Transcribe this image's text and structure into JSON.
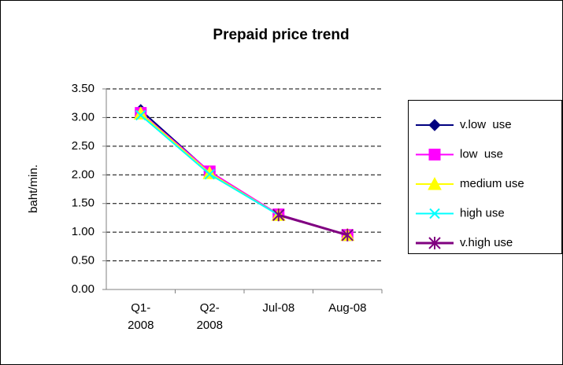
{
  "chart_data": {
    "type": "line",
    "title": "Prepaid price trend",
    "y_label": "baht/min.",
    "categories": [
      "Q1-2008",
      "Q2-2008",
      "Jul-08",
      "Aug-08"
    ],
    "series": [
      {
        "name": "v.low  use",
        "color": "#000080",
        "marker": "diamond",
        "values": [
          3.13,
          2.05,
          1.31,
          0.95
        ]
      },
      {
        "name": "low  use",
        "color": "#ff00ff",
        "marker": "square",
        "values": [
          3.08,
          2.06,
          1.31,
          0.95
        ]
      },
      {
        "name": "medium use",
        "color": "#ffff00",
        "marker": "triangle",
        "values": [
          3.07,
          2.03,
          1.3,
          0.95
        ]
      },
      {
        "name": "high use",
        "color": "#00ffff",
        "marker": "x",
        "values": [
          3.04,
          2.01,
          1.3,
          0.95
        ]
      },
      {
        "name": "v.high use",
        "color": "#800080",
        "marker": "star",
        "values": [
          null,
          null,
          1.3,
          0.95
        ]
      }
    ],
    "ylim": [
      0,
      3.5
    ],
    "yticks": [
      {
        "value": 0,
        "label": "0.00"
      },
      {
        "value": 0.5,
        "label": "0.50"
      },
      {
        "value": 1,
        "label": "1.00"
      },
      {
        "value": 1.5,
        "label": "1.50"
      },
      {
        "value": 2,
        "label": "2.00"
      },
      {
        "value": 2.5,
        "label": "2.50"
      },
      {
        "value": 3,
        "label": "3.00"
      },
      {
        "value": 3.5,
        "label": "3.50"
      }
    ],
    "grid": true,
    "legend": "right"
  }
}
